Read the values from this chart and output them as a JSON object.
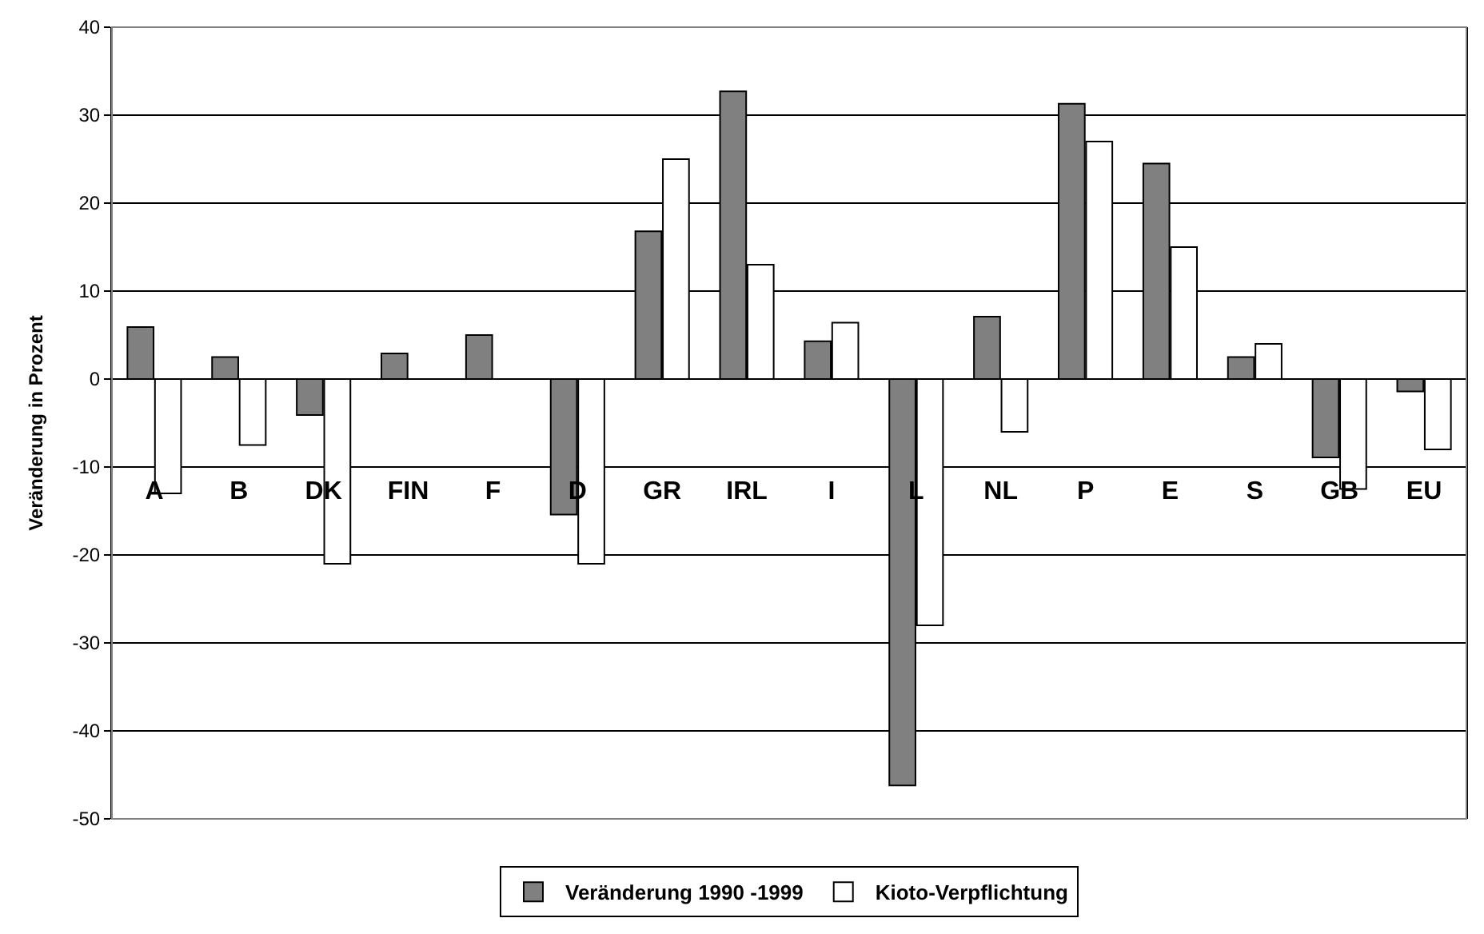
{
  "chart_data": {
    "type": "bar",
    "ylabel": "Veränderung in Prozent",
    "categories": [
      "A",
      "B",
      "DK",
      "FIN",
      "F",
      "D",
      "GR",
      "IRL",
      "I",
      "L",
      "NL",
      "P",
      "E",
      "S",
      "GB",
      "EU"
    ],
    "series": [
      {
        "name": "Veränderung 1990 -1999",
        "color": "#808080",
        "values": [
          5.9,
          2.5,
          -4.1,
          2.9,
          5.0,
          -15.4,
          16.8,
          32.7,
          4.3,
          -46.2,
          7.1,
          31.3,
          24.5,
          2.5,
          -8.9,
          -1.4
        ]
      },
      {
        "name": "Kioto-Verpflichtung",
        "color": "#ffffff",
        "values": [
          -13,
          -7.5,
          -21,
          null,
          null,
          -21,
          25,
          13,
          6.4,
          -28,
          -6,
          27,
          15,
          4,
          -12.5,
          -8
        ]
      }
    ],
    "ylim": [
      -50,
      40
    ],
    "yticks": [
      -50,
      -40,
      -30,
      -20,
      -10,
      0,
      10,
      20,
      30,
      40
    ],
    "grid": "y",
    "legend": "bottom"
  }
}
